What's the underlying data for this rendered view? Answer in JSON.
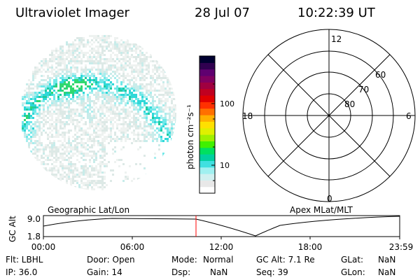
{
  "header": {
    "title": "Ultraviolet Imager",
    "date": "28 Jul 07",
    "time": "10:22:39 UT"
  },
  "colorbar": {
    "unit_label": "photon cm⁻²s⁻¹",
    "tick_labels": [
      "100",
      "10"
    ],
    "colors": [
      "#ffffff",
      "#e8e8e8",
      "#d0f0f0",
      "#a0f0f0",
      "#40e0e0",
      "#00d0a0",
      "#00e060",
      "#40f000",
      "#a0f000",
      "#e0f000",
      "#ffe000",
      "#ffb000",
      "#ff7000",
      "#ff3000",
      "#e00000",
      "#c00020",
      "#a00040",
      "#800060",
      "#600070",
      "#300050",
      "#000030"
    ]
  },
  "polar_plot": {
    "mlt_labels": {
      "top": "12",
      "left": "18",
      "right": "6",
      "bottom": "0"
    },
    "lat_labels": [
      "60",
      "70",
      "80"
    ]
  },
  "timeline": {
    "left_label": "Geographic Lat/Lon",
    "right_label": "Apex MLat/MLT",
    "y_axis_label": "GC Alt",
    "y_ticks": [
      "9.0",
      "1.8"
    ],
    "x_ticks": [
      "00:00",
      "06:00",
      "12:00",
      "18:00",
      "23:59"
    ],
    "marker_time": "10:22",
    "marker_color": "#ff0000"
  },
  "info": {
    "flt": "Flt: LBHL",
    "ip": "IP: 36.0",
    "door": "Door: Open",
    "gain": "Gain: 14",
    "mode_label": "Mode:",
    "mode_value": "Normal",
    "dsp_label": "Dsp:",
    "dsp_value": "NaN",
    "gcalt": "GC Alt: 7.1 Re",
    "seq": "Seq: 39",
    "glat_label": "GLat:",
    "glat_value": "NaN",
    "glon_label": "GLon:",
    "glon_value": "NaN"
  }
}
